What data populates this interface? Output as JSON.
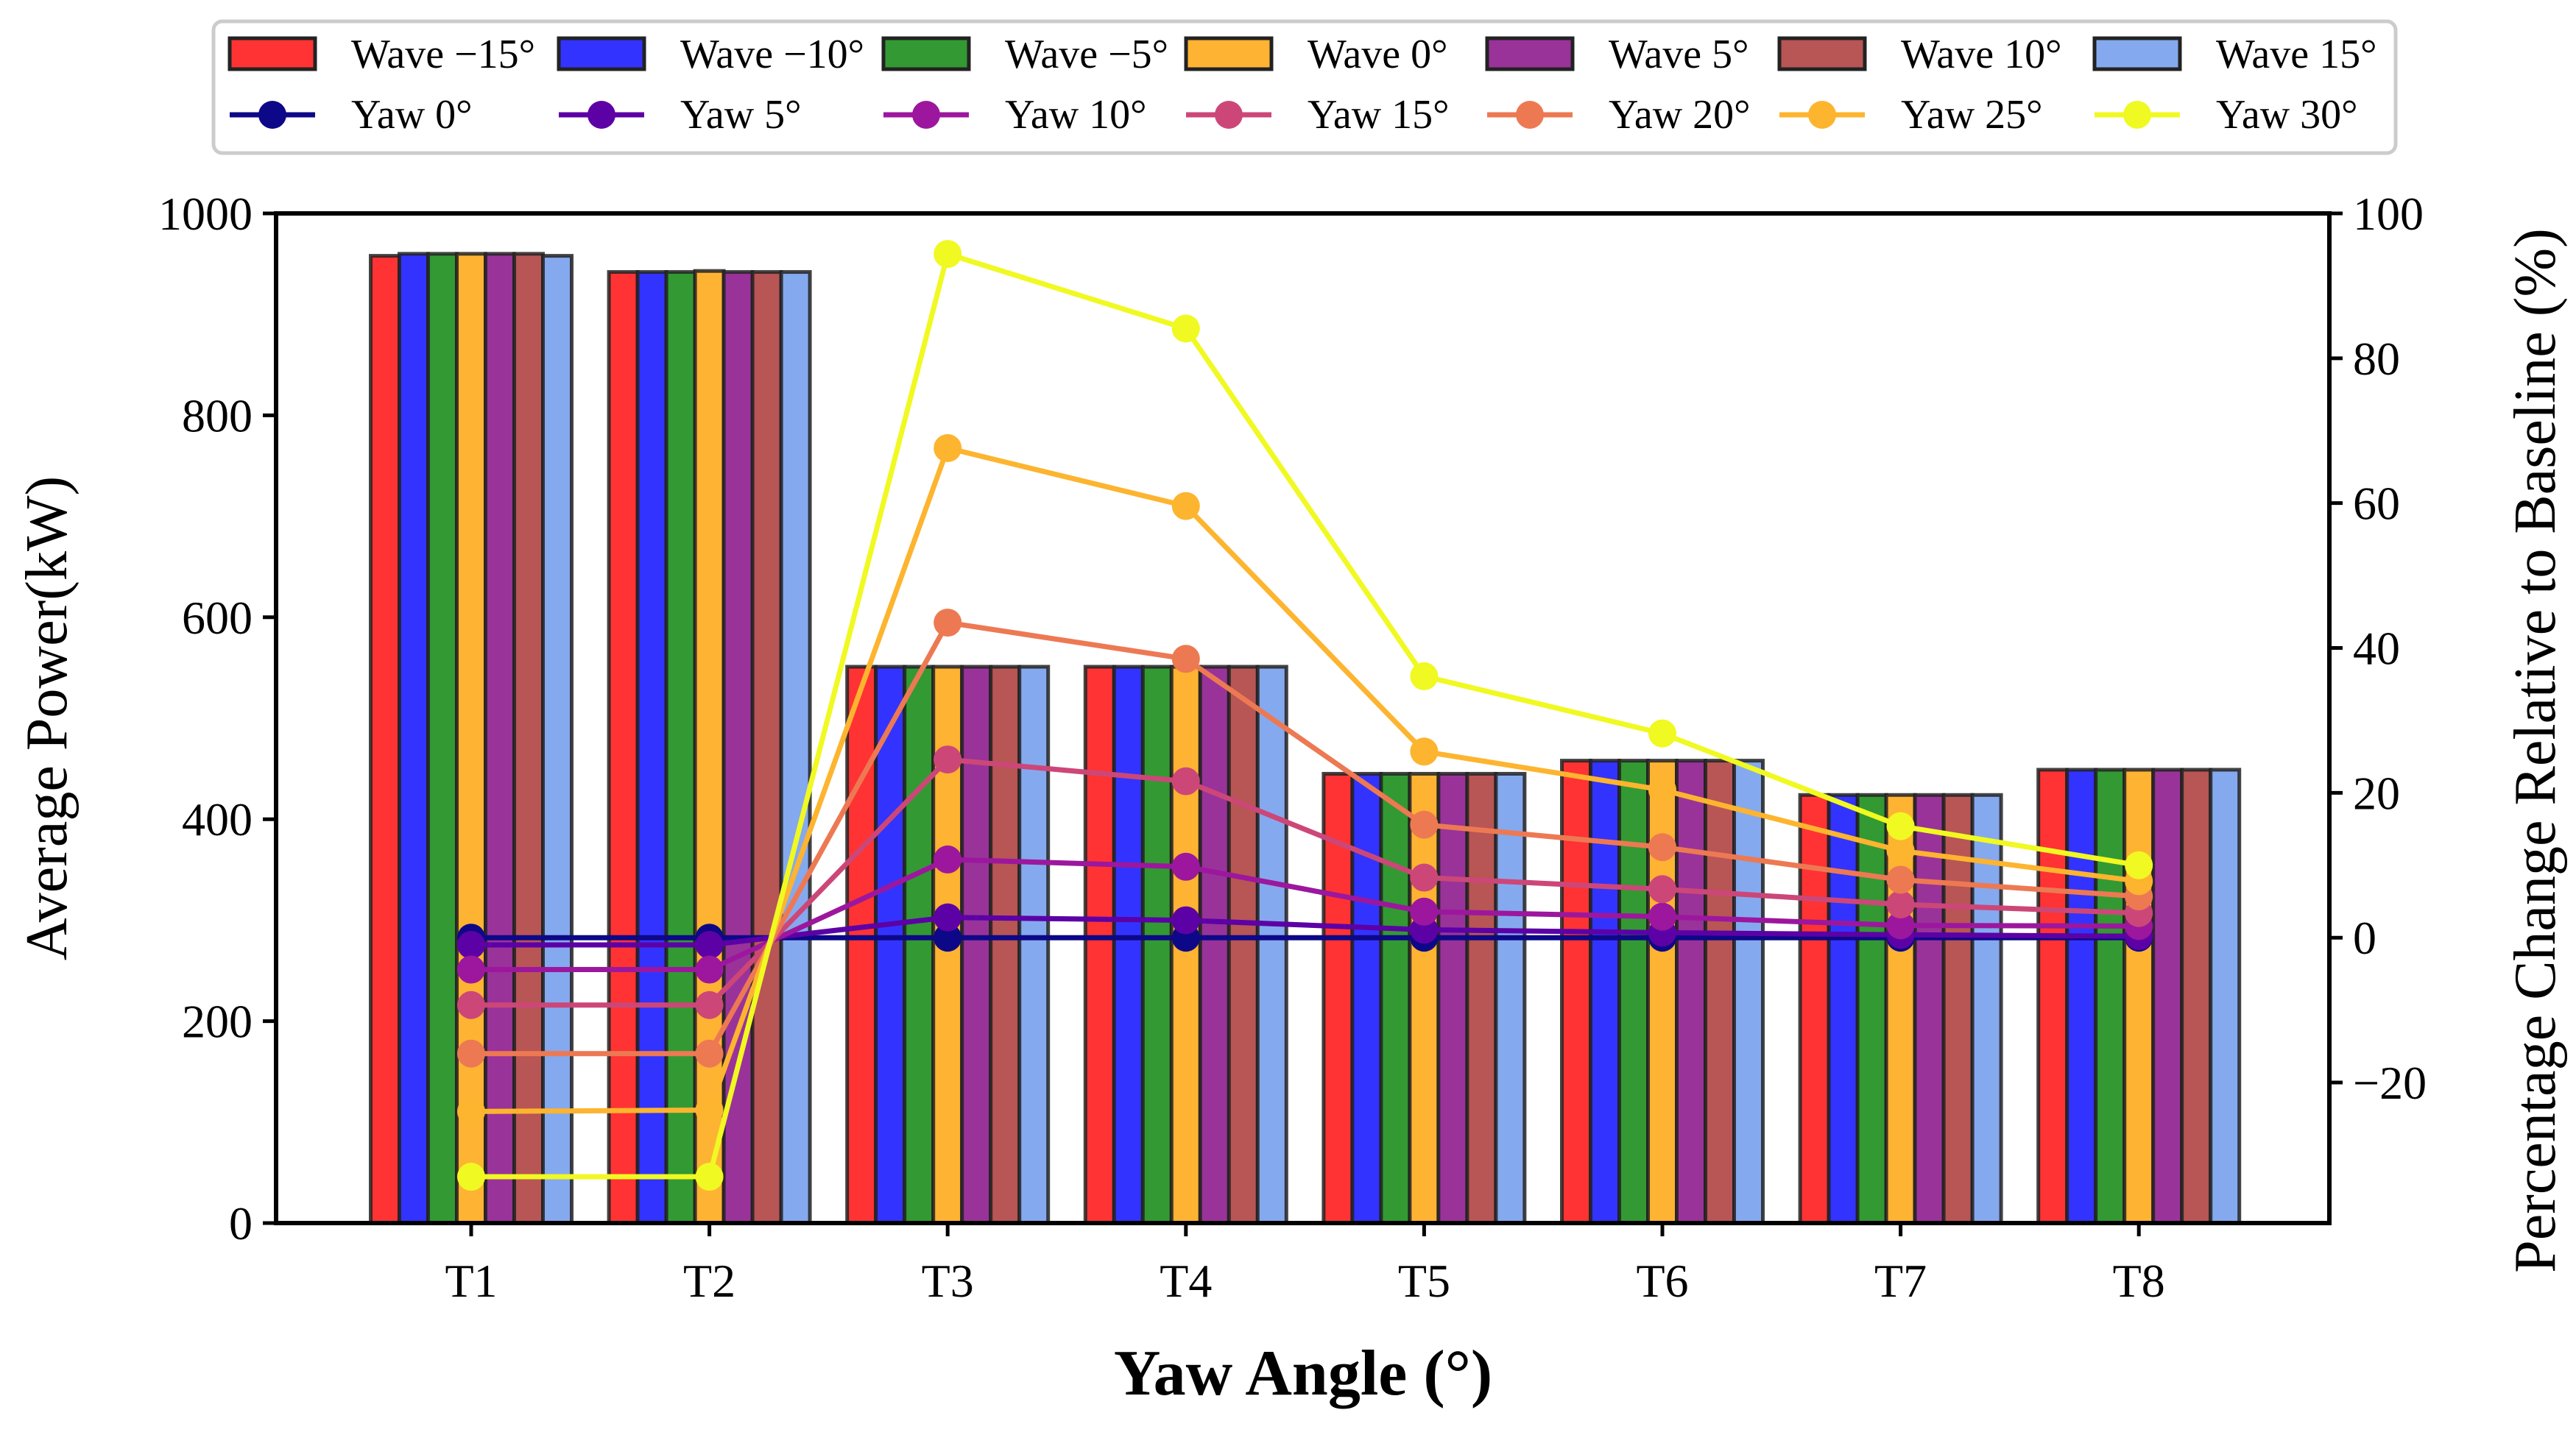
{
  "chart_data": {
    "type": "bar",
    "title": "",
    "xlabel": "Yaw Angle (°)",
    "ylabel": "Average Power(kW)",
    "ylabel_right": "Percentage Change Relative to Baseline (%)",
    "categories": [
      "T1",
      "T2",
      "T3",
      "T4",
      "T5",
      "T6",
      "T7",
      "T8"
    ],
    "ylim": [
      0,
      1000
    ],
    "ylim_right": [
      -39.4,
      100
    ],
    "yticks": [
      0,
      200,
      400,
      600,
      800,
      1000
    ],
    "yticks_right": [
      -20,
      0,
      20,
      40,
      60,
      80,
      100
    ],
    "ytick_labels_right": [
      "−20",
      "0",
      "20",
      "40",
      "60",
      "80",
      "100"
    ],
    "grid": false,
    "legend_position": "top",
    "bar_series": [
      {
        "name": "Wave −15°",
        "color": "#ff3333",
        "values": [
          958,
          942,
          551,
          551,
          445,
          458,
          424,
          449
        ]
      },
      {
        "name": "Wave −10°",
        "color": "#3333ff",
        "values": [
          960,
          942,
          551,
          551,
          445,
          458,
          424,
          449
        ]
      },
      {
        "name": "Wave −5°",
        "color": "#339933",
        "values": [
          960,
          942,
          551,
          551,
          445,
          458,
          424,
          449
        ]
      },
      {
        "name": "Wave 0°",
        "color": "#ffb333",
        "values": [
          960,
          943,
          551,
          551,
          445,
          458,
          424,
          449
        ]
      },
      {
        "name": "Wave 5°",
        "color": "#993399",
        "values": [
          960,
          942,
          551,
          551,
          445,
          458,
          424,
          449
        ]
      },
      {
        "name": "Wave 10°",
        "color": "#b85555",
        "values": [
          960,
          942,
          551,
          551,
          445,
          458,
          424,
          449
        ]
      },
      {
        "name": "Wave 15°",
        "color": "#85a9ee",
        "values": [
          958,
          942,
          551,
          551,
          445,
          458,
          424,
          449
        ]
      }
    ],
    "line_series": [
      {
        "name": "Yaw 0°",
        "color": "#0d0887",
        "values": [
          0,
          0,
          0,
          0,
          0,
          0,
          0,
          0
        ]
      },
      {
        "name": "Yaw 5°",
        "color": "#5c01a6",
        "values": [
          -1,
          -1,
          2.8,
          2.4,
          1.1,
          0.7,
          0.4,
          0.2
        ]
      },
      {
        "name": "Yaw 10°",
        "color": "#9c179e",
        "values": [
          -4.4,
          -4.4,
          10.8,
          9.8,
          3.6,
          2.9,
          1.7,
          1.6
        ]
      },
      {
        "name": "Yaw 15°",
        "color": "#cc4778",
        "values": [
          -9.3,
          -9.3,
          24.6,
          21.6,
          8.3,
          6.7,
          4.6,
          3.4
        ]
      },
      {
        "name": "Yaw 20°",
        "color": "#ed7953",
        "values": [
          -16,
          -16,
          43.5,
          38.5,
          15.6,
          12.5,
          8.0,
          5.7
        ]
      },
      {
        "name": "Yaw 25°",
        "color": "#fdb42f",
        "values": [
          -24,
          -23.8,
          67.6,
          59.6,
          25.7,
          20.4,
          12.0,
          7.8
        ]
      },
      {
        "name": "Yaw 30°",
        "color": "#f0f921",
        "values": [
          -33,
          -33,
          94.4,
          84.1,
          36.1,
          28.2,
          15.4,
          10.0
        ]
      }
    ]
  }
}
